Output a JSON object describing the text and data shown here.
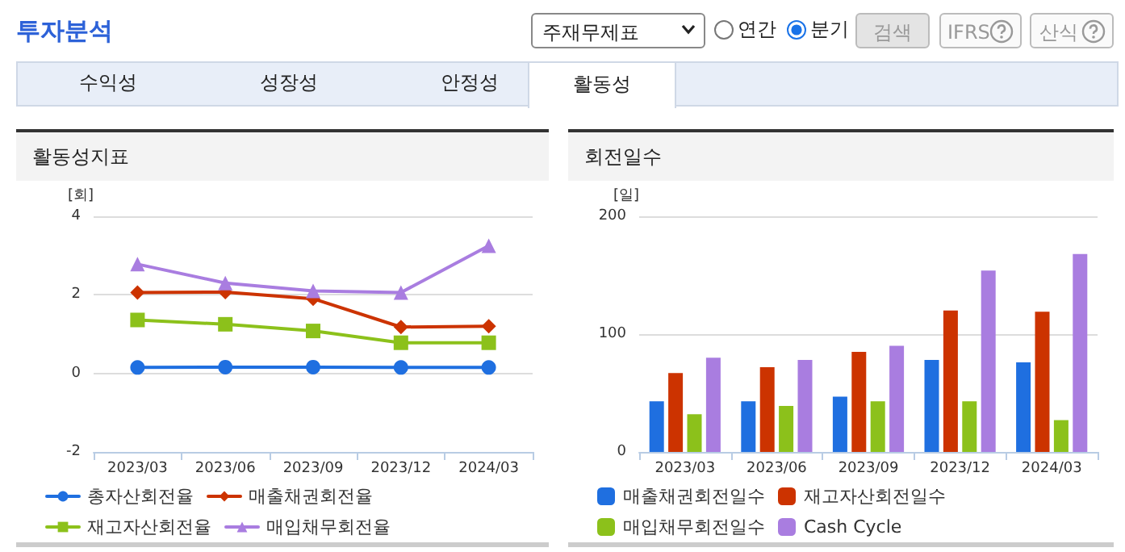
{
  "chart_data": [
    {
      "type": "line",
      "title": "활동성지표",
      "ylabel": "[회]",
      "annotations": [
        "투자분석",
        "주재무제표",
        "연간",
        "분기",
        "검색",
        "IFRS",
        "산식",
        "수익성",
        "성장성",
        "안정성",
        "활동성"
      ],
      "categories": [
        "2023/03",
        "2023/06",
        "2023/09",
        "2023/12",
        "2024/03"
      ],
      "series": [
        {
          "name": "총자산회전율",
          "color": "#1f6fe0",
          "marker": "circle",
          "values": [
            0.15,
            0.16,
            0.16,
            0.15,
            0.15
          ]
        },
        {
          "name": "매출채권회전율",
          "color": "#cc3300",
          "marker": "diamond",
          "values": [
            2.06,
            2.07,
            1.9,
            1.18,
            1.2
          ]
        },
        {
          "name": "재고자산회전율",
          "color": "#8cc11b",
          "marker": "square",
          "values": [
            1.36,
            1.25,
            1.08,
            0.78,
            0.78
          ]
        },
        {
          "name": "매입채무회전율",
          "color": "#a97de0",
          "marker": "triangle",
          "values": [
            2.78,
            2.3,
            2.1,
            2.06,
            3.25
          ]
        }
      ],
      "ylim": [
        -2,
        4
      ],
      "yticks": [
        -2,
        0,
        2,
        4
      ],
      "grid": "y",
      "legend": "bottom"
    },
    {
      "type": "bar",
      "title": "회전일수",
      "ylabel": "[일]",
      "categories": [
        "2023/03",
        "2023/06",
        "2023/09",
        "2023/12",
        "2024/03"
      ],
      "series": [
        {
          "name": "매출채권회전일수",
          "color": "#1f6fe0",
          "values": [
            43,
            43,
            47,
            78,
            76
          ]
        },
        {
          "name": "재고자산회전일수",
          "color": "#cc3300",
          "values": [
            67,
            72,
            85,
            120,
            119
          ]
        },
        {
          "name": "매입채무회전일수",
          "color": "#8cc11b",
          "values": [
            32,
            39,
            43,
            43,
            27
          ]
        },
        {
          "name": "Cash Cycle",
          "color": "#a97de0",
          "values": [
            80,
            78,
            90,
            154,
            168
          ]
        }
      ],
      "ylim": [
        0,
        200
      ],
      "yticks": [
        0,
        100,
        200
      ],
      "grid": "y",
      "legend": "bottom"
    }
  ]
}
